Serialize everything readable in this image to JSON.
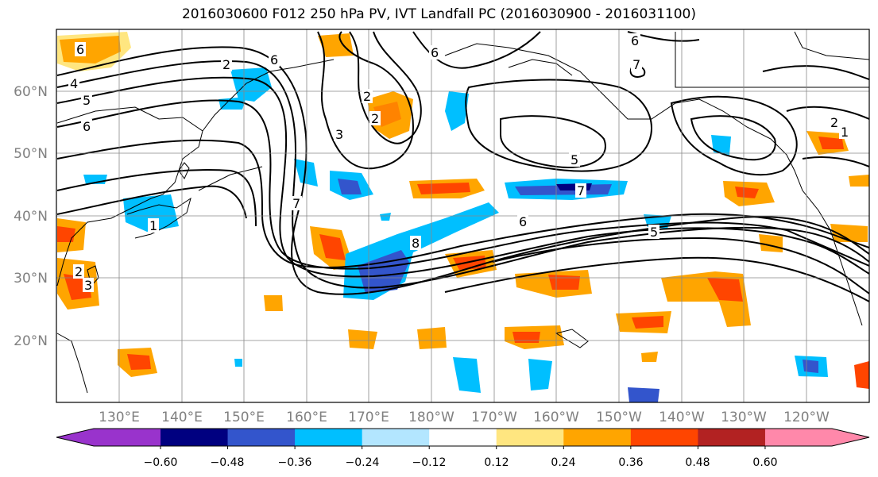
{
  "title": "2016030600 F012 250 hPa PV, IVT Landfall PC (2016030900 - 2016031100)",
  "lat_labels": [
    "60°N",
    "50°N",
    "40°N",
    "30°N",
    "20°N"
  ],
  "lon_labels": [
    "130°E",
    "140°E",
    "150°E",
    "160°E",
    "170°E",
    "180°W",
    "170°W",
    "160°W",
    "150°W",
    "140°W",
    "130°W",
    "120°W"
  ],
  "colorbar": {
    "tick_labels": [
      "−0.60",
      "−0.48",
      "−0.36",
      "−0.24",
      "−0.12",
      "0.12",
      "0.24",
      "0.36",
      "0.48",
      "0.60"
    ],
    "colors": [
      "#9933cc",
      "#000080",
      "#3355cc",
      "#00bfff",
      "#b3e6ff",
      "#ffffff",
      "#ffe680",
      "#ffa500",
      "#ff4500",
      "#b22222",
      "#ff88aa"
    ]
  },
  "contour_labels": [
    "6",
    "6",
    "2",
    "4",
    "5",
    "6",
    "2",
    "6",
    "7",
    "6",
    "5",
    "7",
    "7",
    "6",
    "5",
    "8",
    "2",
    "1",
    "3",
    "2",
    "3",
    "2",
    "1"
  ]
}
